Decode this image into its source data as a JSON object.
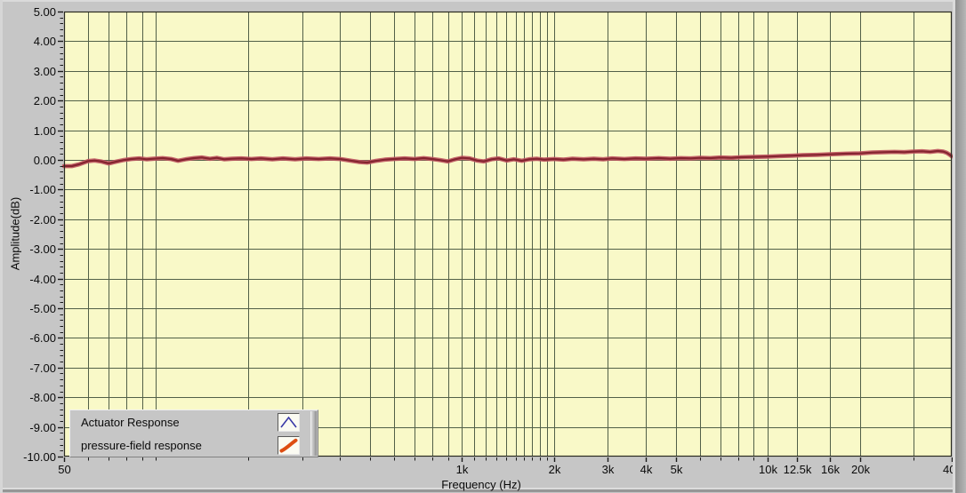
{
  "window": {
    "background_color": "#c6c6c6"
  },
  "axis_titles": {
    "y": "Amplitude(dB)",
    "x": "Frequency (Hz)"
  },
  "legend": {
    "items": [
      {
        "label": "Actuator Response",
        "icon": "peak-line-icon",
        "icon_color": "#3939a8"
      },
      {
        "label": "pressure-field response",
        "icon": "rising-line-icon",
        "icon_color": "#dd4d12"
      }
    ]
  },
  "chart_data": {
    "type": "line",
    "title": "",
    "xlabel": "Frequency (Hz)",
    "ylabel": "Amplitude(dB)",
    "x_scale": "log",
    "xlim": [
      50,
      40000
    ],
    "ylim": [
      -10,
      5
    ],
    "grid": true,
    "legend_position": "bottom-left-overlay",
    "plot_bg_color": "#f9f9c8",
    "grid_color": "#526048",
    "border_color": "#2a2a20",
    "tick_color": "#1a1a1a",
    "y_ticks": [
      {
        "v": 5,
        "label": "5.00"
      },
      {
        "v": 4,
        "label": "4.00"
      },
      {
        "v": 3,
        "label": "3.00"
      },
      {
        "v": 2,
        "label": "2.00"
      },
      {
        "v": 1,
        "label": "1.00"
      },
      {
        "v": 0,
        "label": "0.00"
      },
      {
        "v": -1,
        "label": "-1.00"
      },
      {
        "v": -2,
        "label": "-2.00"
      },
      {
        "v": -3,
        "label": "-3.00"
      },
      {
        "v": -4,
        "label": "-4.00"
      },
      {
        "v": -5,
        "label": "-5.00"
      },
      {
        "v": -6,
        "label": "-6.00"
      },
      {
        "v": -7,
        "label": "-7.00"
      },
      {
        "v": -8,
        "label": "-8.00"
      },
      {
        "v": -9,
        "label": "-9.00"
      },
      {
        "v": -10,
        "label": "-10.00"
      }
    ],
    "y_minor_step": 0.2,
    "x_ticks": [
      {
        "f": 50,
        "label": "50"
      },
      {
        "f": 1000,
        "label": "1k"
      },
      {
        "f": 2000,
        "label": "2k"
      },
      {
        "f": 3000,
        "label": "3k"
      },
      {
        "f": 4000,
        "label": "4k"
      },
      {
        "f": 5000,
        "label": "5k"
      },
      {
        "f": 10000,
        "label": "10k"
      },
      {
        "f": 12500,
        "label": "12.5k"
      },
      {
        "f": 16000,
        "label": "16k"
      },
      {
        "f": 20000,
        "label": "20k"
      },
      {
        "f": 40000,
        "label": "40k"
      }
    ],
    "grid_frequencies": [
      50,
      60,
      70,
      80,
      90,
      100,
      200,
      300,
      400,
      500,
      600,
      700,
      800,
      900,
      1000,
      1100,
      1200,
      1300,
      1400,
      1500,
      1600,
      1700,
      1800,
      1900,
      2000,
      3000,
      4000,
      5000,
      6000,
      7000,
      8000,
      9000,
      10000,
      12500,
      16000,
      20000,
      30000,
      40000
    ],
    "series": [
      {
        "name": "Actuator Response",
        "legend_icon": "peak-line",
        "legend_icon_color": "#3939a8",
        "points": []
      },
      {
        "name": "pressure-field response",
        "legend_icon": "rising-line",
        "legend_icon_color": "#dd4d12",
        "line_color": "#84242f",
        "halo_color": "#bf5560",
        "points": [
          [
            50,
            -0.21
          ],
          [
            53,
            -0.21
          ],
          [
            56,
            -0.15
          ],
          [
            60,
            -0.04
          ],
          [
            63,
            -0.02
          ],
          [
            66,
            -0.05
          ],
          [
            70,
            -0.12
          ],
          [
            74,
            -0.06
          ],
          [
            78,
            -0.01
          ],
          [
            83,
            0.03
          ],
          [
            88,
            0.05
          ],
          [
            93,
            0.02
          ],
          [
            98,
            0.04
          ],
          [
            105,
            0.06
          ],
          [
            112,
            0.03
          ],
          [
            118,
            -0.03
          ],
          [
            125,
            0.02
          ],
          [
            133,
            0.06
          ],
          [
            141,
            0.08
          ],
          [
            150,
            0.04
          ],
          [
            158,
            0.07
          ],
          [
            167,
            0.02
          ],
          [
            177,
            0.04
          ],
          [
            190,
            0.05
          ],
          [
            205,
            0.03
          ],
          [
            220,
            0.05
          ],
          [
            240,
            0.02
          ],
          [
            260,
            0.05
          ],
          [
            285,
            0.02
          ],
          [
            310,
            0.05
          ],
          [
            340,
            0.03
          ],
          [
            370,
            0.05
          ],
          [
            400,
            0.03
          ],
          [
            430,
            -0.02
          ],
          [
            460,
            -0.07
          ],
          [
            490,
            -0.09
          ],
          [
            520,
            -0.04
          ],
          [
            560,
            0.01
          ],
          [
            600,
            0.03
          ],
          [
            650,
            0.05
          ],
          [
            700,
            0.03
          ],
          [
            750,
            0.06
          ],
          [
            800,
            0.03
          ],
          [
            850,
            -0.01
          ],
          [
            900,
            -0.05
          ],
          [
            950,
            0.02
          ],
          [
            1000,
            0.07
          ],
          [
            1060,
            0.05
          ],
          [
            1120,
            -0.02
          ],
          [
            1180,
            -0.05
          ],
          [
            1250,
            0.02
          ],
          [
            1320,
            0.05
          ],
          [
            1400,
            -0.02
          ],
          [
            1480,
            0.02
          ],
          [
            1570,
            -0.03
          ],
          [
            1660,
            0.02
          ],
          [
            1760,
            0.04
          ],
          [
            1860,
            0.01
          ],
          [
            2000,
            0.03
          ],
          [
            2150,
            0.01
          ],
          [
            2300,
            0.04
          ],
          [
            2500,
            0.02
          ],
          [
            2700,
            0.04
          ],
          [
            2900,
            0.02
          ],
          [
            3100,
            0.05
          ],
          [
            3400,
            0.03
          ],
          [
            3700,
            0.05
          ],
          [
            4000,
            0.04
          ],
          [
            4400,
            0.06
          ],
          [
            4800,
            0.04
          ],
          [
            5200,
            0.06
          ],
          [
            5600,
            0.05
          ],
          [
            6000,
            0.07
          ],
          [
            6500,
            0.06
          ],
          [
            7000,
            0.08
          ],
          [
            7600,
            0.07
          ],
          [
            8200,
            0.09
          ],
          [
            9000,
            0.1
          ],
          [
            10000,
            0.11
          ],
          [
            11000,
            0.13
          ],
          [
            12000,
            0.14
          ],
          [
            13000,
            0.16
          ],
          [
            14500,
            0.17
          ],
          [
            16000,
            0.19
          ],
          [
            18000,
            0.21
          ],
          [
            20000,
            0.22
          ],
          [
            22000,
            0.25
          ],
          [
            24000,
            0.26
          ],
          [
            26000,
            0.27
          ],
          [
            28000,
            0.26
          ],
          [
            30000,
            0.28
          ],
          [
            32000,
            0.29
          ],
          [
            34000,
            0.27
          ],
          [
            36000,
            0.3
          ],
          [
            37500,
            0.28
          ],
          [
            38500,
            0.24
          ],
          [
            39300,
            0.18
          ],
          [
            40000,
            0.12
          ]
        ]
      }
    ]
  }
}
